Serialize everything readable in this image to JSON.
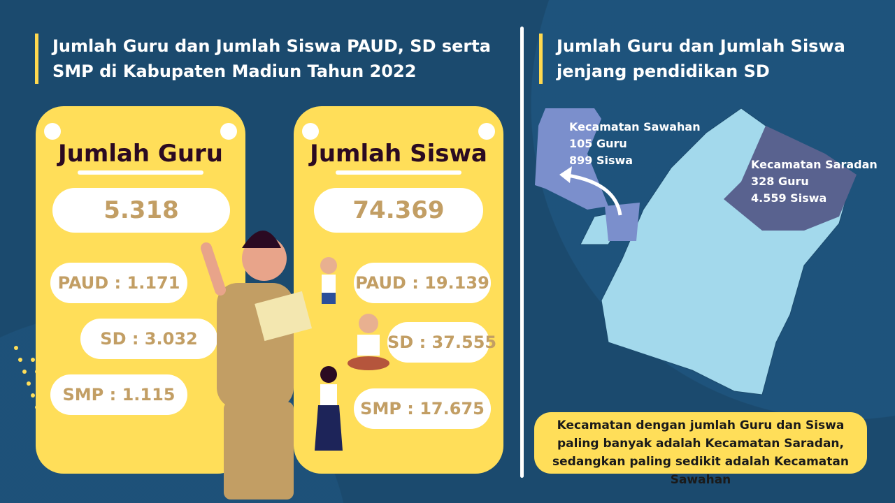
{
  "left": {
    "title_line1": "Jumlah Guru dan Jumlah Siswa PAUD, SD serta",
    "title_line2": "SMP di Kabupaten Madiun Tahun 2022"
  },
  "guru": {
    "title": "Jumlah Guru",
    "total": "5.318",
    "paud": "PAUD : 1.171",
    "sd": "SD : 3.032",
    "smp": "SMP : 1.115"
  },
  "siswa": {
    "title": "Jumlah Siswa",
    "total": "74.369",
    "paud": "PAUD : 19.139",
    "sd": "SD : 37.555",
    "smp": "SMP : 17.675"
  },
  "right": {
    "title_line1": "Jumlah Guru dan Jumlah Siswa",
    "title_line2": "jenjang pendidikan SD"
  },
  "map": {
    "sawahan": {
      "name": "Kecamatan Sawahan",
      "guru": "105 Guru",
      "siswa": "899 Siswa",
      "color": "#7b8fcc"
    },
    "saradan": {
      "name": "Kecamatan Saradan",
      "guru": "328 Guru",
      "siswa": "4.559 Siswa",
      "color": "#59628f"
    },
    "base_color": "#a3d9ec"
  },
  "note": "Kecamatan dengan jumlah Guru dan Siswa paling banyak adalah Kecamatan Saradan, sedangkan paling sedikit adalah Kecamatan Sawahan",
  "colors": {
    "background": "#1b4a6e",
    "card": "#ffde59",
    "value_text": "#c29e64"
  }
}
